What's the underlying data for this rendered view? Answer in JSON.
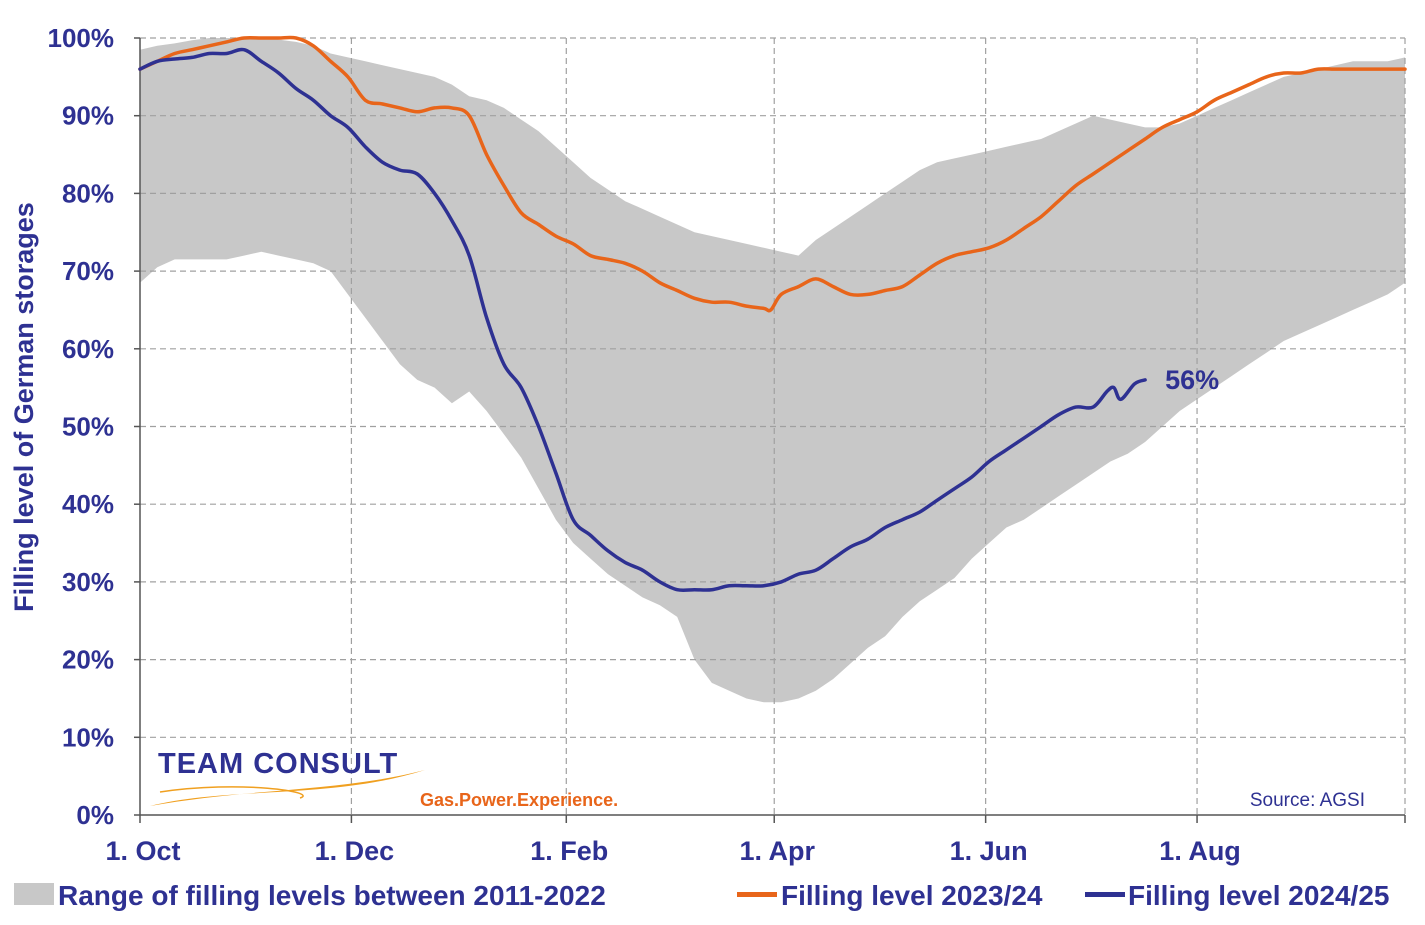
{
  "chart_data": {
    "type": "area",
    "ylabel": "Filling level of German storages",
    "ylim": [
      0,
      100
    ],
    "y_ticks": [
      0,
      10,
      20,
      30,
      40,
      50,
      60,
      70,
      80,
      90,
      100
    ],
    "y_tick_labels": [
      "0%",
      "10%",
      "20%",
      "30%",
      "40%",
      "50%",
      "60%",
      "70%",
      "80%",
      "90%",
      "100%"
    ],
    "x_unit": "days since 1 Oct",
    "xlim": [
      0,
      365
    ],
    "x_ticks": [
      {
        "label": "1. Oct",
        "day": 0
      },
      {
        "label": "1. Dec",
        "day": 61
      },
      {
        "label": "1. Feb",
        "day": 123
      },
      {
        "label": "1. Apr",
        "day": 183
      },
      {
        "label": "1. Jun",
        "day": 244
      },
      {
        "label": "1. Aug",
        "day": 305
      }
    ],
    "grid": true,
    "legend_position": "bottom",
    "range": {
      "name": "Range of filling levels between 2011-2022",
      "x": [
        0,
        5,
        10,
        15,
        20,
        25,
        30,
        35,
        40,
        45,
        50,
        55,
        60,
        65,
        70,
        75,
        80,
        85,
        90,
        95,
        100,
        105,
        110,
        115,
        120,
        125,
        130,
        135,
        140,
        145,
        150,
        155,
        160,
        165,
        170,
        175,
        180,
        185,
        190,
        195,
        200,
        205,
        210,
        215,
        220,
        225,
        230,
        235,
        240,
        245,
        250,
        255,
        260,
        265,
        270,
        275,
        280,
        285,
        290,
        295,
        300,
        305,
        310,
        315,
        320,
        325,
        330,
        335,
        340,
        345,
        350,
        355,
        360,
        365
      ],
      "upper": [
        98.5,
        99,
        99.3,
        99.7,
        100,
        100,
        100,
        100,
        99.8,
        99.5,
        99,
        98,
        97.5,
        97,
        96.5,
        96,
        95.5,
        95,
        94,
        92.5,
        92,
        91,
        89.5,
        88,
        86,
        84,
        82,
        80.5,
        79,
        78,
        77,
        76,
        75,
        74.5,
        74,
        73.5,
        73,
        72.5,
        72,
        74,
        75.5,
        77,
        78.5,
        80,
        81.5,
        83,
        84,
        84.5,
        85,
        85.5,
        86,
        86.5,
        87,
        88,
        89,
        90,
        89.5,
        89,
        88.5,
        88.5,
        89,
        90,
        91,
        92,
        93,
        94,
        95,
        95.5,
        96,
        96.5,
        97,
        97,
        97,
        97.5
      ],
      "lower": [
        68.5,
        70.5,
        71.5,
        71.5,
        71.5,
        71.5,
        72,
        72.5,
        72,
        71.5,
        71,
        70,
        67,
        64,
        61,
        58,
        56,
        55,
        53,
        54.5,
        52,
        49,
        46,
        42,
        38,
        35,
        33,
        31,
        29.5,
        28,
        27,
        25.5,
        20,
        17,
        16,
        15,
        14.5,
        14.5,
        15,
        16,
        17.5,
        19.5,
        21.5,
        23,
        25.5,
        27.5,
        29,
        30.5,
        33,
        35,
        37,
        38,
        39.5,
        41,
        42.5,
        44,
        45.5,
        46.5,
        48,
        50,
        52,
        53.5,
        55,
        56.5,
        58,
        59.5,
        61,
        62,
        63,
        64,
        65,
        66,
        67,
        68.5
      ]
    },
    "series": [
      {
        "name": "Filling level 2023/24",
        "color": "#e8651a",
        "x": [
          0,
          5,
          10,
          15,
          20,
          25,
          30,
          35,
          40,
          45,
          50,
          55,
          60,
          65,
          70,
          75,
          80,
          85,
          90,
          95,
          100,
          105,
          110,
          115,
          120,
          125,
          130,
          135,
          140,
          145,
          150,
          155,
          160,
          165,
          170,
          175,
          180,
          182,
          185,
          190,
          195,
          200,
          205,
          210,
          215,
          220,
          225,
          230,
          235,
          240,
          245,
          250,
          255,
          260,
          265,
          270,
          275,
          280,
          285,
          290,
          295,
          300,
          305,
          310,
          315,
          320,
          325,
          330,
          335,
          340,
          345,
          350,
          355,
          360,
          365
        ],
        "values": [
          96,
          97,
          98,
          98.5,
          99,
          99.5,
          100,
          100,
          100,
          100,
          99,
          97,
          95,
          92,
          91.5,
          91,
          90.5,
          91,
          91,
          90,
          85,
          81,
          77.5,
          76,
          74.5,
          73.5,
          72,
          71.5,
          71,
          70,
          68.5,
          67.5,
          66.5,
          66,
          66,
          65.5,
          65.2,
          65,
          67,
          68,
          69,
          68,
          67,
          67,
          67.5,
          68,
          69.5,
          71,
          72,
          72.5,
          73,
          74,
          75.5,
          77,
          79,
          81,
          82.5,
          84,
          85.5,
          87,
          88.5,
          89.5,
          90.5,
          92,
          93,
          94,
          95,
          95.5,
          95.5,
          96,
          96,
          96,
          96,
          96,
          96
        ]
      },
      {
        "name": "Filling level 2024/25",
        "color": "#2e3192",
        "x": [
          0,
          5,
          10,
          15,
          20,
          25,
          30,
          35,
          40,
          45,
          50,
          55,
          60,
          65,
          70,
          75,
          80,
          85,
          90,
          95,
          100,
          105,
          110,
          115,
          120,
          125,
          130,
          135,
          140,
          145,
          150,
          155,
          160,
          165,
          170,
          175,
          180,
          185,
          190,
          195,
          200,
          205,
          210,
          215,
          220,
          225,
          230,
          235,
          240,
          245,
          250,
          255,
          260,
          265,
          270,
          275,
          279,
          281,
          283,
          287,
          290
        ],
        "values": [
          96,
          97,
          97.3,
          97.5,
          98,
          98,
          98.5,
          97,
          95.5,
          93.5,
          92,
          90,
          88.5,
          86,
          84,
          83,
          82.5,
          80,
          76.5,
          72,
          64,
          58,
          55,
          50,
          44,
          38,
          36,
          34,
          32.5,
          31.5,
          30,
          29,
          29,
          29,
          29.5,
          29.5,
          29.5,
          30,
          31,
          31.5,
          33,
          34.5,
          35.5,
          37,
          38,
          39,
          40.5,
          42,
          43.5,
          45.5,
          47,
          48.5,
          50,
          51.5,
          52.5,
          52.5,
          54.5,
          55,
          53.5,
          55.5,
          56
        ]
      }
    ],
    "annotations": [
      {
        "text": "56%",
        "x": 290,
        "y": 56,
        "color": "#2e3192"
      }
    ],
    "source_text": "Source:  AGSI"
  },
  "legend": [
    {
      "label": "Range of filling levels between 2011-2022",
      "color": "#c8c8c8",
      "kind": "box"
    },
    {
      "label": "Filling level 2023/24",
      "color": "#e8651a",
      "kind": "line"
    },
    {
      "label": "Filling level 2024/25",
      "color": "#2e3192",
      "kind": "line"
    }
  ],
  "logo": {
    "name": "TEAM CONSULT",
    "tagline": "Gas.Power.Experience."
  },
  "colors": {
    "axis_text": "#2e3192",
    "grid": "#a0a0a0",
    "range_fill": "#c8c8c8",
    "orange": "#e8651a",
    "navy": "#2e3192"
  }
}
